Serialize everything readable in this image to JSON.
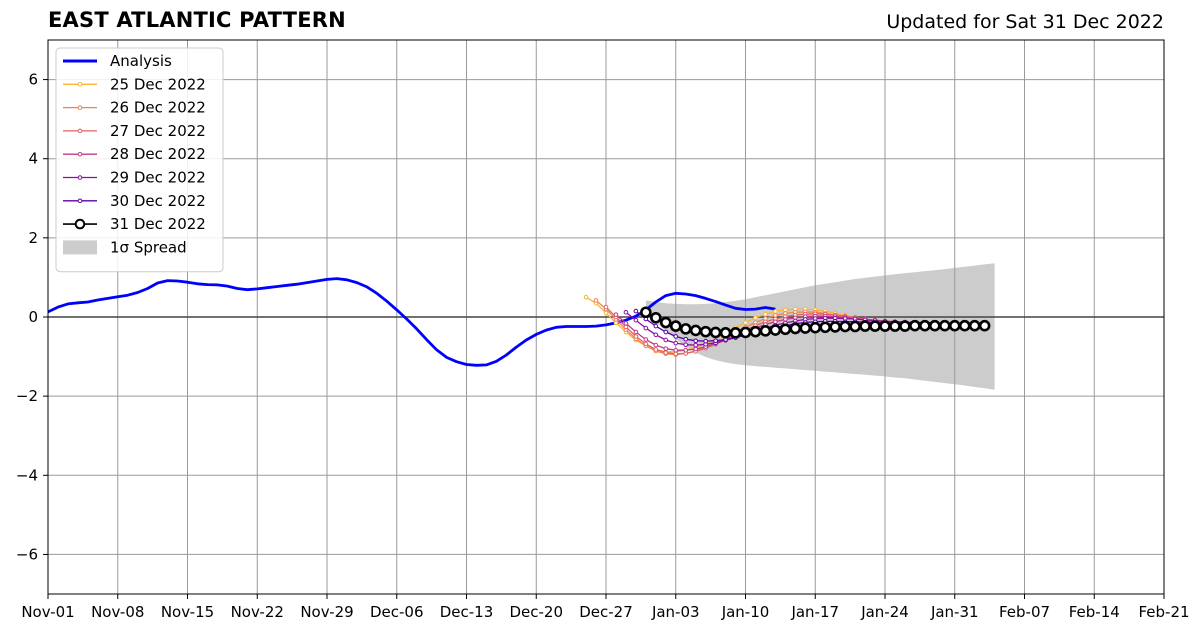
{
  "header": {
    "title": "EAST ATLANTIC PATTERN",
    "subtitle": "Updated for Sat 31 Dec 2022"
  },
  "chart_data": {
    "type": "line",
    "title": "EAST ATLANTIC PATTERN",
    "subtitle": "Updated for Sat 31 Dec 2022",
    "xlabel": "",
    "ylabel": "",
    "x_axis": {
      "type": "date",
      "range": [
        "2022-11-01",
        "2023-02-21"
      ],
      "ticks": [
        {
          "date": "2022-11-01",
          "label": "Nov-01"
        },
        {
          "date": "2022-11-08",
          "label": "Nov-08"
        },
        {
          "date": "2022-11-15",
          "label": "Nov-15"
        },
        {
          "date": "2022-11-22",
          "label": "Nov-22"
        },
        {
          "date": "2022-11-29",
          "label": "Nov-29"
        },
        {
          "date": "2022-12-06",
          "label": "Dec-06"
        },
        {
          "date": "2022-12-13",
          "label": "Dec-13"
        },
        {
          "date": "2022-12-20",
          "label": "Dec-20"
        },
        {
          "date": "2022-12-27",
          "label": "Dec-27"
        },
        {
          "date": "2023-01-03",
          "label": "Jan-03"
        },
        {
          "date": "2023-01-10",
          "label": "Jan-10"
        },
        {
          "date": "2023-01-17",
          "label": "Jan-17"
        },
        {
          "date": "2023-01-24",
          "label": "Jan-24"
        },
        {
          "date": "2023-01-31",
          "label": "Jan-31"
        },
        {
          "date": "2023-02-07",
          "label": "Feb-07"
        },
        {
          "date": "2023-02-14",
          "label": "Feb-14"
        },
        {
          "date": "2023-02-21",
          "label": "Feb-21"
        }
      ]
    },
    "y_axis": {
      "range": [
        -7,
        7
      ],
      "ticks": [
        {
          "value": -6,
          "label": "−6"
        },
        {
          "value": -4,
          "label": "−4"
        },
        {
          "value": -2,
          "label": "−2"
        },
        {
          "value": 0,
          "label": "0"
        },
        {
          "value": 2,
          "label": "2"
        },
        {
          "value": 4,
          "label": "4"
        },
        {
          "value": 6,
          "label": "6"
        }
      ]
    },
    "grid": true,
    "zero_line": true,
    "legend": {
      "position": "top-left",
      "entries": [
        {
          "label": "Analysis",
          "kind": "thick-line",
          "color": "#0000ff"
        },
        {
          "label": "25 Dec 2022",
          "kind": "marker-line",
          "color": "#fbb338"
        },
        {
          "label": "26 Dec 2022",
          "kind": "marker-line",
          "color": "#f2844b"
        },
        {
          "label": "27 Dec 2022",
          "kind": "marker-line",
          "color": "#e16462"
        },
        {
          "label": "28 Dec 2022",
          "kind": "marker-line",
          "color": "#bf3984"
        },
        {
          "label": "29 Dec 2022",
          "kind": "marker-line",
          "color": "#8f0da4"
        },
        {
          "label": "30 Dec 2022",
          "kind": "marker-line",
          "color": "#5c01a6"
        },
        {
          "label": "31 Dec 2022",
          "kind": "circle-line",
          "color": "#000000"
        },
        {
          "label": "1σ Spread",
          "kind": "patch",
          "color": "#cccccc"
        }
      ]
    },
    "series": [
      {
        "name": "Analysis",
        "color": "#0000ff",
        "style": "thick",
        "start": "2022-11-01",
        "values": [
          0.13,
          0.25,
          0.33,
          0.36,
          0.38,
          0.43,
          0.47,
          0.51,
          0.55,
          0.62,
          0.72,
          0.86,
          0.92,
          0.91,
          0.88,
          0.84,
          0.82,
          0.81,
          0.78,
          0.72,
          0.69,
          0.71,
          0.74,
          0.77,
          0.8,
          0.83,
          0.87,
          0.91,
          0.95,
          0.97,
          0.94,
          0.87,
          0.76,
          0.6,
          0.4,
          0.18,
          -0.05,
          -0.3,
          -0.57,
          -0.83,
          -1.02,
          -1.13,
          -1.2,
          -1.22,
          -1.21,
          -1.12,
          -0.96,
          -0.76,
          -0.58,
          -0.44,
          -0.33,
          -0.26,
          -0.24,
          -0.24,
          -0.24,
          -0.23,
          -0.2,
          -0.15,
          -0.08,
          0.02,
          0.18,
          0.38,
          0.54,
          0.6,
          0.58,
          0.54,
          0.47,
          0.39,
          0.3,
          0.22,
          0.19,
          0.2,
          0.24,
          0.2
        ]
      },
      {
        "name": "25 Dec 2022",
        "color": "#fbb338",
        "style": "marker",
        "start": "2022-12-25",
        "values": [
          0.5,
          0.35,
          0.1,
          -0.15,
          -0.38,
          -0.58,
          -0.73,
          -0.83,
          -0.88,
          -0.88,
          -0.84,
          -0.77,
          -0.67,
          -0.55,
          -0.41,
          -0.27,
          -0.14,
          -0.02,
          0.07,
          0.14,
          0.18,
          0.2,
          0.2,
          0.18,
          0.15,
          0.1,
          0.04,
          -0.02,
          -0.08,
          -0.12,
          -0.14,
          -0.15,
          -0.16,
          -0.17,
          -0.17,
          -0.18
        ]
      },
      {
        "name": "26 Dec 2022",
        "color": "#f2844b",
        "style": "marker",
        "start": "2022-12-26",
        "values": [
          0.42,
          0.2,
          -0.06,
          -0.32,
          -0.55,
          -0.73,
          -0.86,
          -0.93,
          -0.95,
          -0.92,
          -0.86,
          -0.77,
          -0.66,
          -0.53,
          -0.39,
          -0.26,
          -0.14,
          -0.04,
          0.04,
          0.09,
          0.12,
          0.13,
          0.12,
          0.09,
          0.05,
          0.0,
          -0.04,
          -0.08,
          -0.11,
          -0.13,
          -0.14,
          -0.15,
          -0.16,
          -0.16,
          -0.17
        ]
      },
      {
        "name": "27 Dec 2022",
        "color": "#e16462",
        "style": "marker",
        "start": "2022-12-27",
        "values": [
          0.25,
          0.0,
          -0.25,
          -0.49,
          -0.68,
          -0.82,
          -0.9,
          -0.93,
          -0.92,
          -0.87,
          -0.79,
          -0.69,
          -0.57,
          -0.45,
          -0.33,
          -0.22,
          -0.12,
          -0.05,
          0.01,
          0.05,
          0.07,
          0.08,
          0.07,
          0.05,
          0.02,
          -0.01,
          -0.05,
          -0.08,
          -0.1,
          -0.12,
          -0.13,
          -0.14,
          -0.15,
          -0.15
        ]
      },
      {
        "name": "28 Dec 2022",
        "color": "#bf3984",
        "style": "marker",
        "start": "2022-12-28",
        "values": [
          0.06,
          -0.16,
          -0.38,
          -0.57,
          -0.71,
          -0.8,
          -0.84,
          -0.84,
          -0.81,
          -0.75,
          -0.67,
          -0.58,
          -0.48,
          -0.38,
          -0.28,
          -0.19,
          -0.12,
          -0.06,
          -0.02,
          0.01,
          0.02,
          0.02,
          0.01,
          -0.01,
          -0.04,
          -0.07,
          -0.09,
          -0.11,
          -0.12,
          -0.13,
          -0.14,
          -0.14,
          -0.15
        ]
      },
      {
        "name": "29 Dec 2022",
        "color": "#8f0da4",
        "style": "marker",
        "start": "2022-12-29",
        "values": [
          0.12,
          -0.08,
          -0.28,
          -0.45,
          -0.58,
          -0.66,
          -0.7,
          -0.71,
          -0.69,
          -0.65,
          -0.59,
          -0.52,
          -0.44,
          -0.36,
          -0.28,
          -0.21,
          -0.15,
          -0.1,
          -0.06,
          -0.04,
          -0.03,
          -0.03,
          -0.04,
          -0.05,
          -0.07,
          -0.09,
          -0.11,
          -0.12,
          -0.13,
          -0.14,
          -0.14,
          -0.15
        ]
      },
      {
        "name": "30 Dec 2022",
        "color": "#5c01a6",
        "style": "marker",
        "start": "2022-12-30",
        "values": [
          0.15,
          -0.05,
          -0.23,
          -0.38,
          -0.49,
          -0.56,
          -0.6,
          -0.61,
          -0.6,
          -0.57,
          -0.52,
          -0.46,
          -0.4,
          -0.33,
          -0.27,
          -0.22,
          -0.17,
          -0.14,
          -0.12,
          -0.11,
          -0.11,
          -0.12,
          -0.12,
          -0.13,
          -0.14,
          -0.15,
          -0.16,
          -0.16,
          -0.17,
          -0.17,
          -0.17
        ]
      },
      {
        "name": "31 Dec 2022",
        "color": "#000000",
        "style": "circle",
        "start": "2022-12-31",
        "values": [
          0.12,
          -0.02,
          -0.14,
          -0.23,
          -0.3,
          -0.34,
          -0.37,
          -0.39,
          -0.4,
          -0.4,
          -0.39,
          -0.37,
          -0.35,
          -0.33,
          -0.31,
          -0.29,
          -0.28,
          -0.27,
          -0.26,
          -0.25,
          -0.24,
          -0.24,
          -0.23,
          -0.23,
          -0.23,
          -0.23,
          -0.23,
          -0.22,
          -0.22,
          -0.22,
          -0.22,
          -0.22,
          -0.22,
          -0.22,
          -0.22
        ]
      }
    ],
    "spread": {
      "name": "1σ Spread",
      "color": "#cccccc",
      "start": "2022-12-31",
      "upper": [
        0.42,
        0.38,
        0.35,
        0.33,
        0.32,
        0.32,
        0.33,
        0.35,
        0.38,
        0.41,
        0.45,
        0.5,
        0.55,
        0.6,
        0.65,
        0.7,
        0.75,
        0.8,
        0.84,
        0.88,
        0.92,
        0.96,
        0.99,
        1.02,
        1.05,
        1.08,
        1.11,
        1.13,
        1.16,
        1.18,
        1.21,
        1.24,
        1.27,
        1.3,
        1.33,
        1.36
      ],
      "lower": [
        0.08,
        -0.12,
        -0.35,
        -0.56,
        -0.75,
        -0.9,
        -1.01,
        -1.09,
        -1.15,
        -1.19,
        -1.22,
        -1.24,
        -1.26,
        -1.28,
        -1.3,
        -1.32,
        -1.34,
        -1.36,
        -1.38,
        -1.4,
        -1.42,
        -1.44,
        -1.46,
        -1.48,
        -1.5,
        -1.53,
        -1.55,
        -1.58,
        -1.61,
        -1.64,
        -1.67,
        -1.7,
        -1.73,
        -1.77,
        -1.8,
        -1.84
      ]
    }
  }
}
